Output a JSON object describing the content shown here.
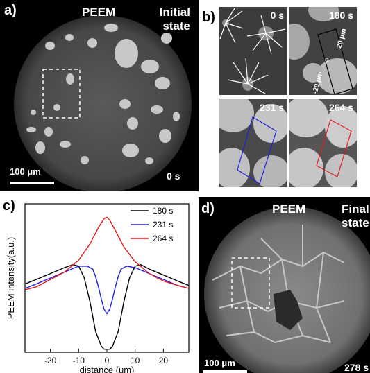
{
  "panel_a": {
    "label": "a)",
    "title": "PEEM",
    "state_line1": "Initial",
    "state_line2": "state",
    "scalebar": "100 μm",
    "time": "0 s"
  },
  "panel_b": {
    "label": "b)",
    "tiles": [
      {
        "time": "0 s"
      },
      {
        "time": "180 s",
        "box_labels": [
          "20 μm",
          "0",
          "-20 μm"
        ]
      },
      {
        "time": "231 s"
      },
      {
        "time": "264 s"
      }
    ]
  },
  "panel_d": {
    "label": "d)",
    "title": "PEEM",
    "state_line1": "Final",
    "state_line2": "state",
    "scalebar": "100 μm",
    "time": "278 s"
  },
  "colors": {
    "s180": "#000000",
    "s231": "#1f1fe0",
    "s264": "#e21a1a"
  },
  "chart_data": {
    "panel_label": "c)",
    "type": "line",
    "xlabel": "distance (um)",
    "ylabel": "PEEM intensity(a.u.)",
    "xlim": [
      -29,
      29
    ],
    "ylim": [
      0,
      1
    ],
    "xticks": [
      -20,
      -10,
      0,
      10,
      20
    ],
    "xtick_labels": [
      "-20",
      "-10",
      "0",
      "10",
      "20"
    ],
    "legend": "top-right",
    "series": [
      {
        "name": "180 s",
        "color": "#000000",
        "x": [
          -29,
          -25,
          -20,
          -15,
          -12,
          -10,
          -8,
          -6,
          -4,
          -2,
          -1,
          0,
          1,
          2,
          4,
          6,
          8,
          10,
          12,
          15,
          20,
          25,
          29
        ],
        "y": [
          0.46,
          0.49,
          0.53,
          0.57,
          0.59,
          0.58,
          0.5,
          0.34,
          0.14,
          0.04,
          0.02,
          0.02,
          0.02,
          0.04,
          0.14,
          0.34,
          0.5,
          0.58,
          0.59,
          0.56,
          0.52,
          0.48,
          0.45
        ]
      },
      {
        "name": "231 s",
        "color": "#1f1fe0",
        "x": [
          -29,
          -25,
          -20,
          -15,
          -10,
          -7,
          -5,
          -4,
          -3,
          -2,
          -1,
          0,
          1,
          2,
          3,
          4,
          5,
          7,
          10,
          15,
          20,
          25,
          29
        ],
        "y": [
          0.43,
          0.46,
          0.5,
          0.54,
          0.58,
          0.58,
          0.56,
          0.51,
          0.44,
          0.36,
          0.29,
          0.26,
          0.29,
          0.36,
          0.44,
          0.51,
          0.56,
          0.58,
          0.57,
          0.53,
          0.49,
          0.45,
          0.43
        ]
      },
      {
        "name": "264 s",
        "color": "#e21a1a",
        "x": [
          -29,
          -25,
          -20,
          -15,
          -10,
          -6,
          -3,
          -1,
          0,
          1,
          3,
          6,
          10,
          15,
          20,
          25,
          29
        ],
        "y": [
          0.42,
          0.44,
          0.49,
          0.54,
          0.62,
          0.73,
          0.84,
          0.9,
          0.91,
          0.89,
          0.82,
          0.71,
          0.61,
          0.53,
          0.48,
          0.45,
          0.43
        ]
      }
    ]
  }
}
